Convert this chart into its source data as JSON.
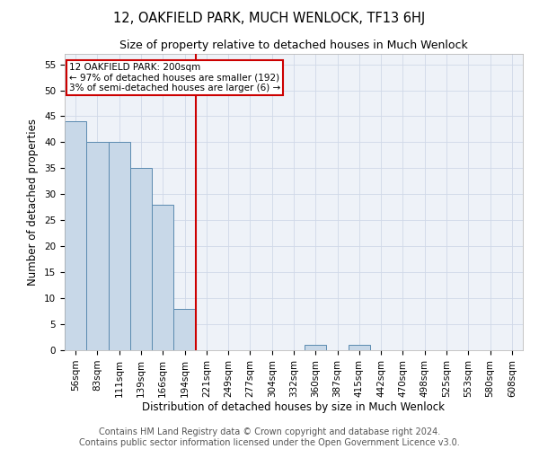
{
  "title": "12, OAKFIELD PARK, MUCH WENLOCK, TF13 6HJ",
  "subtitle": "Size of property relative to detached houses in Much Wenlock",
  "xlabel": "Distribution of detached houses by size in Much Wenlock",
  "ylabel": "Number of detached properties",
  "footer_line1": "Contains HM Land Registry data © Crown copyright and database right 2024.",
  "footer_line2": "Contains public sector information licensed under the Open Government Licence v3.0.",
  "categories": [
    "56sqm",
    "83sqm",
    "111sqm",
    "139sqm",
    "166sqm",
    "194sqm",
    "221sqm",
    "249sqm",
    "277sqm",
    "304sqm",
    "332sqm",
    "360sqm",
    "387sqm",
    "415sqm",
    "442sqm",
    "470sqm",
    "498sqm",
    "525sqm",
    "553sqm",
    "580sqm",
    "608sqm"
  ],
  "values": [
    44,
    40,
    40,
    35,
    28,
    8,
    0,
    0,
    0,
    0,
    0,
    1,
    0,
    1,
    0,
    0,
    0,
    0,
    0,
    0,
    0
  ],
  "bar_color": "#c8d8e8",
  "bar_edge_color": "#5a8ab0",
  "vline_color": "#cc0000",
  "vline_x_index": 5,
  "annotation_text": "12 OAKFIELD PARK: 200sqm\n← 97% of detached houses are smaller (192)\n3% of semi-detached houses are larger (6) →",
  "annotation_box_color": "#ffffff",
  "annotation_box_edge_color": "#cc0000",
  "ylim": [
    0,
    57
  ],
  "yticks": [
    0,
    5,
    10,
    15,
    20,
    25,
    30,
    35,
    40,
    45,
    50,
    55
  ],
  "grid_color": "#d0d8e8",
  "bg_color": "#eef2f8",
  "title_fontsize": 10.5,
  "subtitle_fontsize": 9,
  "axis_label_fontsize": 8.5,
  "tick_fontsize": 7.5,
  "footer_fontsize": 7
}
